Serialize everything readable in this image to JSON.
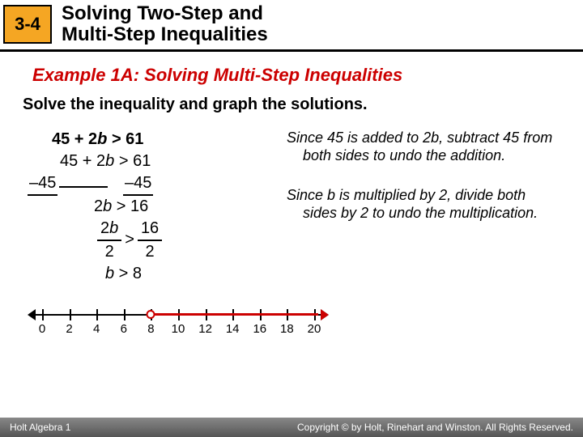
{
  "header": {
    "badge": "3-4",
    "title_line1": "Solving Two-Step and",
    "title_line2": "Multi-Step Inequalities"
  },
  "example_label": "Example 1A: Solving Multi-Step Inequalities",
  "instruction": "Solve the inequality and graph the solutions.",
  "work": {
    "problem_lhs": "45 + 2",
    "problem_var": "b",
    "problem_rhs": " > 61",
    "step1_lhs": "45 + 2",
    "step1_var": "b",
    "step1_rhs": " > 61",
    "subtract_l": "–45",
    "subtract_r": "–45",
    "result1_lhs": "2",
    "result1_var": "b",
    "result1_rhs": " > 16",
    "div_top_l_num": "2",
    "div_top_l_var": "b",
    "div_bot_l": "2",
    "div_op": ">",
    "div_top_r": "16",
    "div_bot_r": "2",
    "answer_var": "b",
    "answer_rhs": " > 8"
  },
  "explanations": {
    "e1": "Since 45 is added to 2b, subtract 45 from both sides to undo the addition.",
    "e2": "Since b is multiplied by 2, divide both sides by 2 to undo the multiplication."
  },
  "numberline": {
    "ticks": [
      "0",
      "2",
      "4",
      "6",
      "8",
      "10",
      "12",
      "14",
      "16",
      "18",
      "20"
    ],
    "open_at_index": 4,
    "colors": {
      "axis": "#000",
      "solution": "#c00"
    }
  },
  "footer": {
    "left": "Holt Algebra 1",
    "right": "Copyright © by Holt, Rinehart and Winston. All Rights Reserved."
  }
}
